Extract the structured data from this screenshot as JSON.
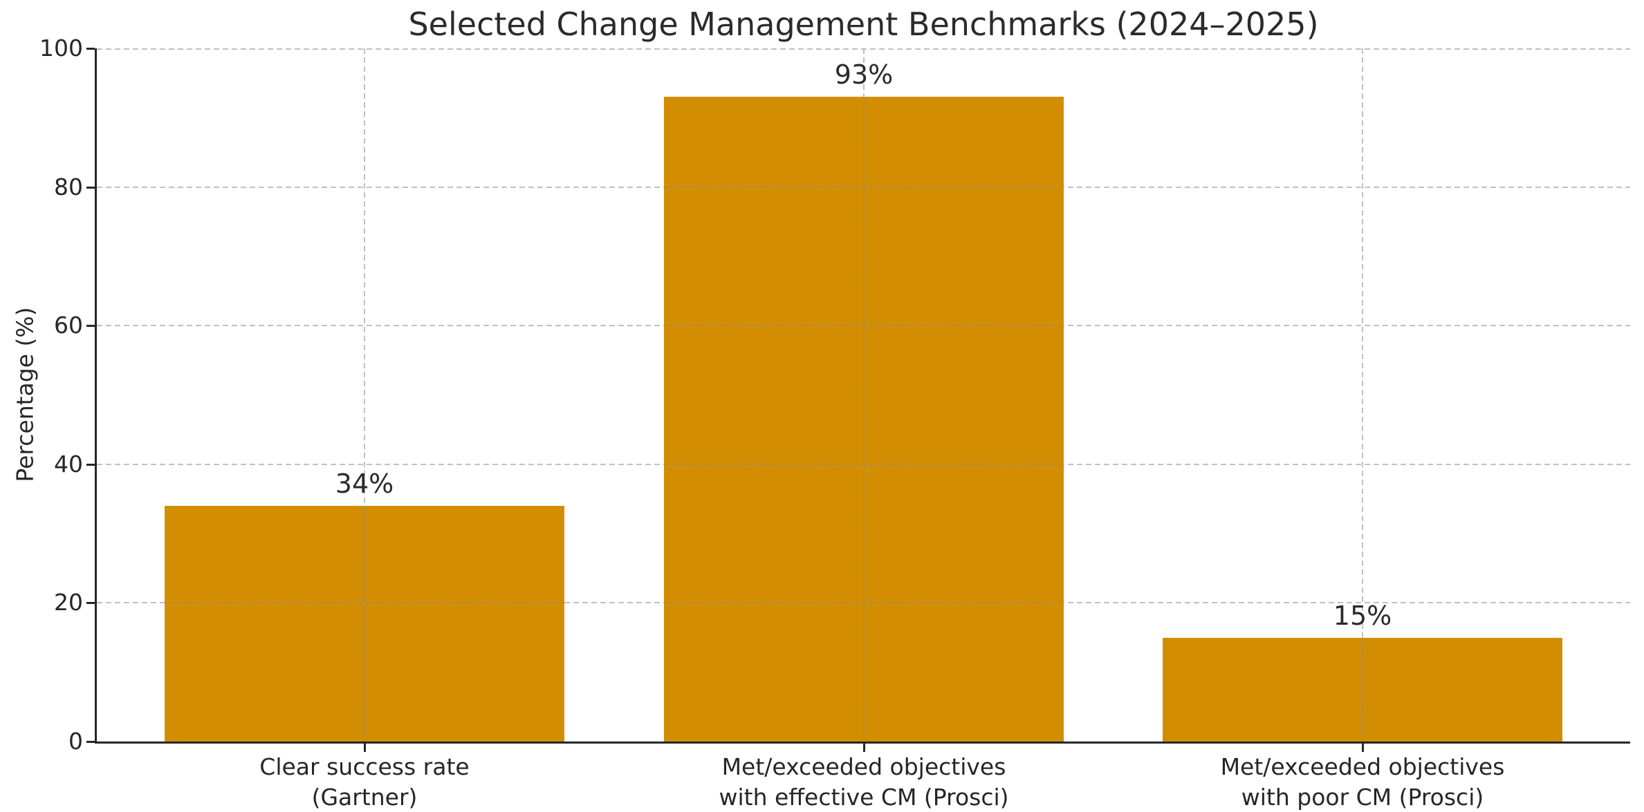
{
  "chart_data": {
    "type": "bar",
    "title": "Selected Change Management Benchmarks (2024–2025)",
    "ylabel": "Percentage (%)",
    "xlabel": "",
    "categories": [
      "Clear success rate\n(Gartner)",
      "Met/exceeded objectives\nwith effective CM (Prosci)",
      "Met/exceeded objectives\nwith poor CM (Prosci)"
    ],
    "values": [
      34,
      93,
      15
    ],
    "bar_labels": [
      "34%",
      "93%",
      "15%"
    ],
    "yticks": [
      0,
      20,
      40,
      60,
      80,
      100
    ],
    "ylim": [
      0,
      100
    ],
    "legend": "none",
    "grid": {
      "horizontal": true,
      "vertical": true,
      "style": "dashed",
      "drawn_above_bars": true
    },
    "colors": {
      "bar": "#D28E00",
      "grid": "#BFBFBF",
      "axis": "#262626",
      "text": "#262626",
      "background": "#FFFFFF"
    }
  }
}
